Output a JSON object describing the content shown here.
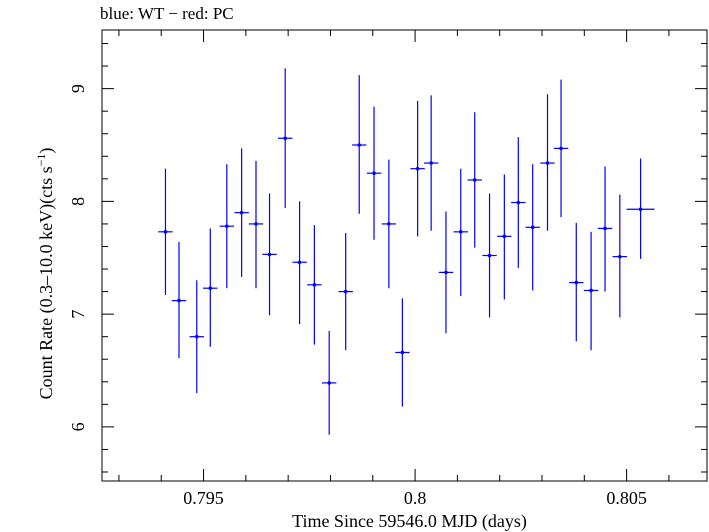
{
  "chart_data": {
    "type": "scatter",
    "title": "blue: WT − red: PC",
    "xlabel": "Time Since 59546.0 MJD (days)",
    "ylabel": "Count Rate (0.3–10.0 keV)(cts s",
    "ylabel_sup": "−1",
    "ylabel_suffix": ")",
    "xlim": [
      0.7926,
      0.8069
    ],
    "ylim": [
      5.52,
      9.52
    ],
    "x_ticks": [
      {
        "value": 0.795,
        "label": "0.795"
      },
      {
        "value": 0.8,
        "label": "0.8"
      },
      {
        "value": 0.805,
        "label": "0.805"
      }
    ],
    "y_ticks": [
      {
        "value": 6,
        "label": "6"
      },
      {
        "value": 7,
        "label": "7"
      },
      {
        "value": 8,
        "label": "8"
      },
      {
        "value": 9,
        "label": "9"
      }
    ],
    "series": [
      {
        "color": "#0000ff",
        "points": [
          {
            "x": 0.7941,
            "y": 7.73,
            "xerr": 0.00017,
            "ylo": 7.17,
            "yhi": 8.29
          },
          {
            "x": 0.79442,
            "y": 7.12,
            "xerr": 0.00017,
            "ylo": 6.61,
            "yhi": 7.64
          },
          {
            "x": 0.79484,
            "y": 6.8,
            "xerr": 0.00017,
            "ylo": 6.3,
            "yhi": 7.3
          },
          {
            "x": 0.79516,
            "y": 7.23,
            "xerr": 0.00017,
            "ylo": 6.71,
            "yhi": 7.76
          },
          {
            "x": 0.79555,
            "y": 7.78,
            "xerr": 0.00017,
            "ylo": 7.23,
            "yhi": 8.33
          },
          {
            "x": 0.7959,
            "y": 7.9,
            "xerr": 0.00017,
            "ylo": 7.33,
            "yhi": 8.47
          },
          {
            "x": 0.79624,
            "y": 7.8,
            "xerr": 0.00017,
            "ylo": 7.23,
            "yhi": 8.36
          },
          {
            "x": 0.79656,
            "y": 7.53,
            "xerr": 0.00017,
            "ylo": 6.99,
            "yhi": 8.07
          },
          {
            "x": 0.79693,
            "y": 8.56,
            "xerr": 0.00017,
            "ylo": 7.94,
            "yhi": 9.18
          },
          {
            "x": 0.79727,
            "y": 7.46,
            "xerr": 0.00017,
            "ylo": 6.91,
            "yhi": 8.0
          },
          {
            "x": 0.79762,
            "y": 7.26,
            "xerr": 0.00017,
            "ylo": 6.73,
            "yhi": 7.79
          },
          {
            "x": 0.79797,
            "y": 6.39,
            "xerr": 0.00017,
            "ylo": 5.93,
            "yhi": 6.85
          },
          {
            "x": 0.79836,
            "y": 7.2,
            "xerr": 0.00017,
            "ylo": 6.68,
            "yhi": 7.72
          },
          {
            "x": 0.79868,
            "y": 8.5,
            "xerr": 0.00017,
            "ylo": 7.89,
            "yhi": 9.12
          },
          {
            "x": 0.79903,
            "y": 8.25,
            "xerr": 0.00017,
            "ylo": 7.66,
            "yhi": 8.84
          },
          {
            "x": 0.79938,
            "y": 7.8,
            "xerr": 0.00017,
            "ylo": 7.23,
            "yhi": 8.37
          },
          {
            "x": 0.7997,
            "y": 6.66,
            "xerr": 0.00017,
            "ylo": 6.18,
            "yhi": 7.14
          },
          {
            "x": 0.80006,
            "y": 8.29,
            "xerr": 0.00017,
            "ylo": 7.69,
            "yhi": 8.89
          },
          {
            "x": 0.80038,
            "y": 8.34,
            "xerr": 0.00017,
            "ylo": 7.74,
            "yhi": 8.94
          },
          {
            "x": 0.80073,
            "y": 7.37,
            "xerr": 0.00017,
            "ylo": 6.83,
            "yhi": 7.91
          },
          {
            "x": 0.80108,
            "y": 7.73,
            "xerr": 0.00017,
            "ylo": 7.16,
            "yhi": 8.29
          },
          {
            "x": 0.80141,
            "y": 8.19,
            "xerr": 0.00017,
            "ylo": 7.59,
            "yhi": 8.79
          },
          {
            "x": 0.80176,
            "y": 7.52,
            "xerr": 0.00017,
            "ylo": 6.97,
            "yhi": 8.07
          },
          {
            "x": 0.80211,
            "y": 7.69,
            "xerr": 0.00017,
            "ylo": 7.13,
            "yhi": 8.24
          },
          {
            "x": 0.80244,
            "y": 7.99,
            "xerr": 0.00017,
            "ylo": 7.41,
            "yhi": 8.57
          },
          {
            "x": 0.80278,
            "y": 7.77,
            "xerr": 0.00017,
            "ylo": 7.21,
            "yhi": 8.33
          },
          {
            "x": 0.80313,
            "y": 8.34,
            "xerr": 0.00017,
            "ylo": 7.74,
            "yhi": 8.95
          },
          {
            "x": 0.80345,
            "y": 8.47,
            "xerr": 0.00017,
            "ylo": 7.86,
            "yhi": 9.08
          },
          {
            "x": 0.80381,
            "y": 7.28,
            "xerr": 0.00017,
            "ylo": 6.76,
            "yhi": 7.81
          },
          {
            "x": 0.80416,
            "y": 7.21,
            "xerr": 0.00017,
            "ylo": 6.68,
            "yhi": 7.73
          },
          {
            "x": 0.80449,
            "y": 7.76,
            "xerr": 0.00017,
            "ylo": 7.2,
            "yhi": 8.31
          },
          {
            "x": 0.80484,
            "y": 7.51,
            "xerr": 0.00017,
            "ylo": 6.97,
            "yhi": 8.06
          },
          {
            "x": 0.80533,
            "y": 7.93,
            "xerr": 0.00033,
            "ylo": 7.49,
            "yhi": 8.38
          }
        ]
      }
    ]
  }
}
